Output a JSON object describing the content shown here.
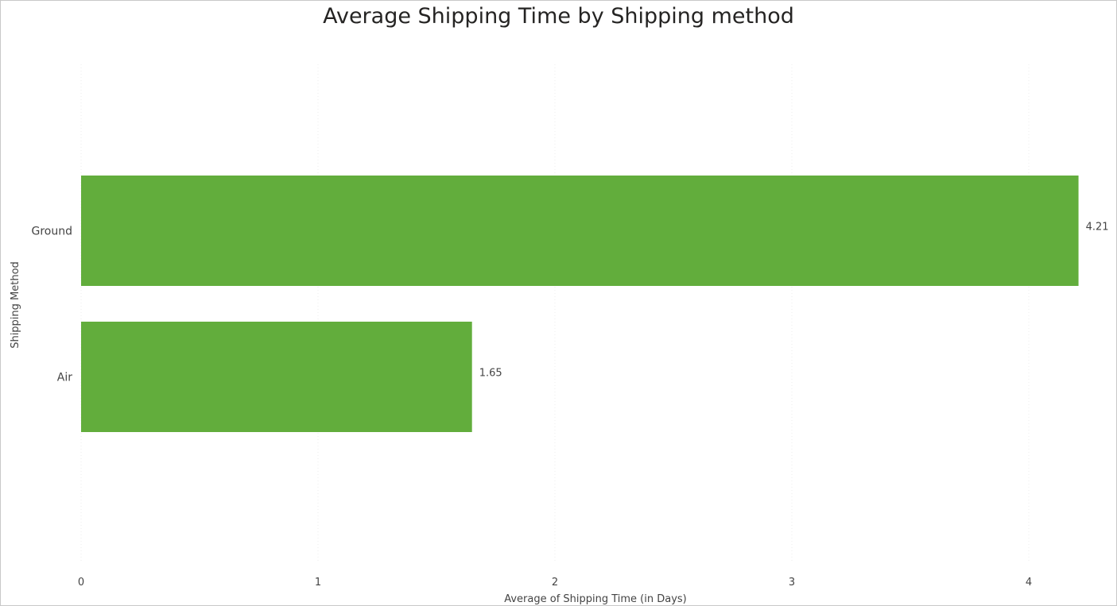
{
  "chart_data": {
    "type": "bar",
    "orientation": "horizontal",
    "title": "Average Shipping Time by Shipping method",
    "categories": [
      "Ground",
      "Air"
    ],
    "values": [
      4.21,
      1.65
    ],
    "data_labels": [
      "4.21",
      "1.65"
    ],
    "xlabel": "Average of Shipping Time (in Days)",
    "ylabel": "Shipping Method",
    "xlim": [
      0,
      4.21
    ],
    "x_ticks": [
      "0",
      "1",
      "2",
      "3",
      "4"
    ],
    "bar_color": "#62ad3c",
    "grid": true,
    "legend": "none"
  }
}
